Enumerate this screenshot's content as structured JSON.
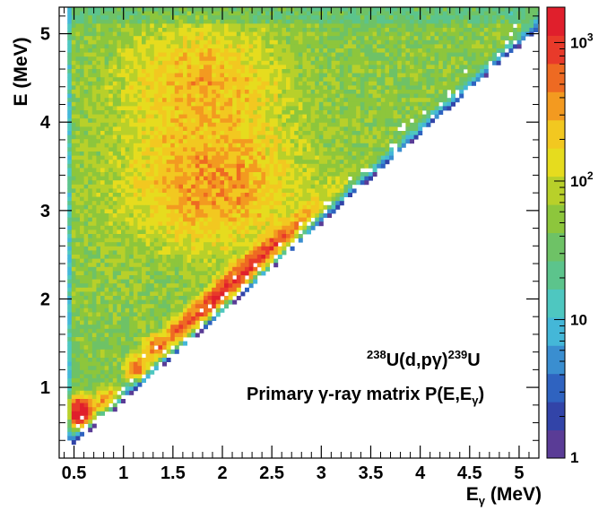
{
  "chart_data": {
    "type": "heatmap",
    "title": "",
    "xlabel": "E",
    "xlabel_sub": "γ",
    "xlabel_unit": " (MeV)",
    "ylabel": "E (MeV)",
    "xlim": [
      0.35,
      5.2
    ],
    "ylim": [
      0.2,
      5.3
    ],
    "x_ticks": [
      0.5,
      1,
      1.5,
      2,
      2.5,
      3,
      3.5,
      4,
      4.5,
      5
    ],
    "x_tick_labels": [
      "0.5",
      "1",
      "1.5",
      "2",
      "2.5",
      "3",
      "3.5",
      "4",
      "4.5",
      "5"
    ],
    "y_ticks": [
      1,
      2,
      3,
      4,
      5
    ],
    "y_tick_labels": [
      "1",
      "2",
      "3",
      "4",
      "5"
    ],
    "z_scale": "log",
    "zlim": [
      1,
      1800
    ],
    "colorbar_labels": [
      {
        "value": 1,
        "base": "1",
        "exp": ""
      },
      {
        "value": 10,
        "base": "10",
        "exp": ""
      },
      {
        "value": 100,
        "base": "10",
        "exp": "2"
      },
      {
        "value": 1000,
        "base": "10",
        "exp": "3"
      }
    ],
    "annotations": {
      "reaction": {
        "pre_sup": "238",
        "main1": "U(d,pγ)",
        "mid_sup": "239",
        "main2": "U"
      },
      "matrix": {
        "main": "Primary γ-ray matrix P(E,E",
        "sub": "γ",
        "end": ")"
      }
    },
    "diagonal_edge": "Eγ = E",
    "features": [
      {
        "name": "background plateau",
        "counts": 60
      },
      {
        "name": "broad bump",
        "e_gamma": 1.9,
        "e": 3.3,
        "counts": 300
      },
      {
        "name": "broad bump",
        "e_gamma": 1.8,
        "e": 4.4,
        "counts": 220
      },
      {
        "name": "diagonal ridge",
        "e_gamma": 2.05,
        "e": 2.1,
        "counts": 1000
      },
      {
        "name": "diagonal ridge",
        "e_gamma": 2.4,
        "e": 2.45,
        "counts": 300
      },
      {
        "name": "low-energy peak",
        "e_gamma": 0.57,
        "e": 0.72,
        "counts": 1800
      },
      {
        "name": "peak",
        "e_gamma": 0.85,
        "e": 0.83,
        "counts": 500
      },
      {
        "name": "peak",
        "e_gamma": 1.15,
        "e": 1.2,
        "counts": 500
      },
      {
        "name": "peak",
        "e_gamma": 1.33,
        "e": 1.45,
        "counts": 350
      },
      {
        "name": "peak",
        "e_gamma": 1.55,
        "e": 1.62,
        "counts": 220
      }
    ],
    "palette": [
      "#5a3c96",
      "#3244a8",
      "#2f63c0",
      "#3a8ed0",
      "#44b7d8",
      "#4ec7c0",
      "#5cc48c",
      "#6ec266",
      "#8dc63c",
      "#b8d02a",
      "#e6dc1e",
      "#f2c820",
      "#f39a20",
      "#ee6a22",
      "#e83a2a",
      "#e01f2c"
    ]
  }
}
